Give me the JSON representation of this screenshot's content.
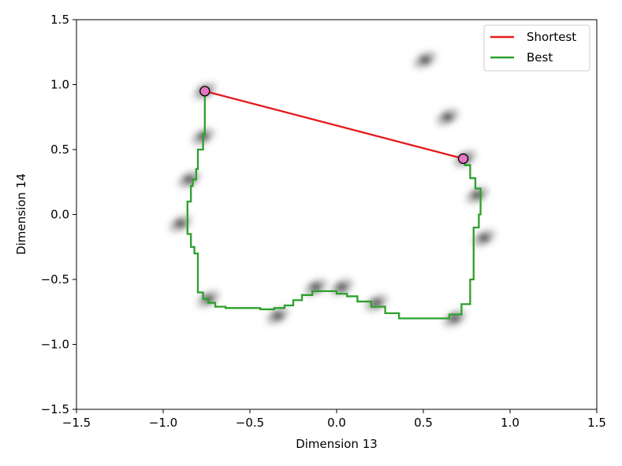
{
  "chart_data": {
    "type": "line",
    "xlabel": "Dimension 13",
    "ylabel": "Dimension 14",
    "xlim": [
      -1.5,
      1.5
    ],
    "ylim": [
      -1.5,
      1.5
    ],
    "xticks": [
      "−1.5",
      "−1.0",
      "−0.5",
      "0.0",
      "0.5",
      "1.0",
      "1.5"
    ],
    "yticks": [
      "−1.5",
      "−1.0",
      "−0.5",
      "0.0",
      "0.5",
      "1.0",
      "1.5"
    ],
    "xtick_values": [
      -1.5,
      -1.0,
      -0.5,
      0.0,
      0.5,
      1.0,
      1.5
    ],
    "ytick_values": [
      -1.5,
      -1.0,
      -0.5,
      0.0,
      0.5,
      1.0,
      1.5
    ],
    "grid": false,
    "legend_position": "top-right",
    "series": [
      {
        "name": "Shortest",
        "color": "#e41a1c",
        "points": [
          [
            -0.76,
            0.95
          ],
          [
            0.73,
            0.43
          ]
        ]
      },
      {
        "name": "Best",
        "color": "#2ca02c",
        "points": [
          [
            -0.76,
            0.95
          ],
          [
            -0.77,
            0.62
          ],
          [
            -0.8,
            0.5
          ],
          [
            -0.81,
            0.35
          ],
          [
            -0.83,
            0.27
          ],
          [
            -0.84,
            0.22
          ],
          [
            -0.86,
            0.1
          ],
          [
            -0.86,
            -0.05
          ],
          [
            -0.84,
            -0.15
          ],
          [
            -0.82,
            -0.25
          ],
          [
            -0.8,
            -0.3
          ],
          [
            -0.8,
            -0.55
          ],
          [
            -0.77,
            -0.6
          ],
          [
            -0.74,
            -0.65
          ],
          [
            -0.7,
            -0.68
          ],
          [
            -0.64,
            -0.71
          ],
          [
            -0.55,
            -0.72
          ],
          [
            -0.44,
            -0.72
          ],
          [
            -0.36,
            -0.73
          ],
          [
            -0.3,
            -0.72
          ],
          [
            -0.25,
            -0.7
          ],
          [
            -0.2,
            -0.66
          ],
          [
            -0.14,
            -0.62
          ],
          [
            -0.08,
            -0.59
          ],
          [
            0.0,
            -0.59
          ],
          [
            0.06,
            -0.61
          ],
          [
            0.12,
            -0.63
          ],
          [
            0.2,
            -0.67
          ],
          [
            0.28,
            -0.71
          ],
          [
            0.36,
            -0.76
          ],
          [
            0.46,
            -0.8
          ],
          [
            0.55,
            -0.8
          ],
          [
            0.65,
            -0.8
          ],
          [
            0.72,
            -0.77
          ],
          [
            0.77,
            -0.69
          ],
          [
            0.79,
            -0.5
          ],
          [
            0.79,
            -0.22
          ],
          [
            0.82,
            -0.1
          ],
          [
            0.83,
            0.0
          ],
          [
            0.83,
            0.12
          ],
          [
            0.8,
            0.2
          ],
          [
            0.77,
            0.28
          ],
          [
            0.74,
            0.38
          ],
          [
            0.73,
            0.43
          ]
        ]
      }
    ],
    "markers": [
      {
        "x": -0.76,
        "y": 0.95,
        "color": "#e377c2"
      },
      {
        "x": 0.73,
        "y": 0.43,
        "color": "#e377c2"
      }
    ],
    "density_blobs": [
      [
        -0.76,
        0.95
      ],
      [
        -0.77,
        0.6
      ],
      [
        -0.85,
        0.27
      ],
      [
        -0.9,
        -0.07
      ],
      [
        -0.74,
        -0.65
      ],
      [
        -0.34,
        -0.78
      ],
      [
        -0.12,
        -0.56
      ],
      [
        0.03,
        -0.56
      ],
      [
        0.23,
        -0.68
      ],
      [
        0.51,
        1.19
      ],
      [
        0.64,
        0.75
      ],
      [
        0.74,
        0.43
      ],
      [
        0.81,
        0.15
      ],
      [
        0.85,
        -0.18
      ],
      [
        0.68,
        -0.8
      ]
    ],
    "legend": [
      {
        "label": "Shortest",
        "color": "#e41a1c"
      },
      {
        "label": "Best",
        "color": "#2ca02c"
      }
    ]
  }
}
